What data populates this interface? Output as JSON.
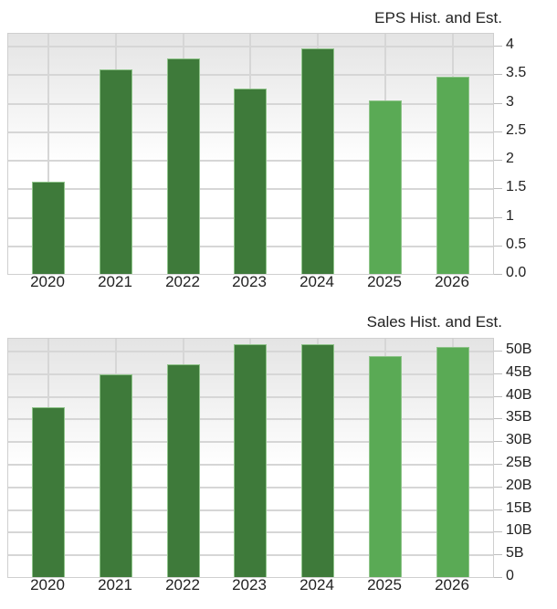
{
  "chart_data": [
    {
      "type": "bar",
      "title": "EPS Hist. and Est.",
      "xlabel": "",
      "ylabel": "",
      "categories": [
        "2020",
        "2021",
        "2022",
        "2023",
        "2024",
        "2025",
        "2026"
      ],
      "values": [
        1.61,
        3.58,
        3.77,
        3.25,
        3.96,
        3.04,
        3.45
      ],
      "bar_kind": [
        "hist",
        "hist",
        "hist",
        "hist",
        "hist",
        "est",
        "est"
      ],
      "ylim": [
        0,
        4.2
      ],
      "yticks": [
        0,
        0.5,
        1,
        1.5,
        2,
        2.5,
        3,
        3.5,
        4
      ],
      "ytick_labels": [
        "0.0",
        "0.5",
        "1",
        "1.5",
        "2",
        "2.5",
        "3",
        "3.5",
        "4"
      ],
      "axis_position": "right",
      "grid": true,
      "colors": {
        "historical": "#3e7a3a",
        "estimate": "#5aaa55"
      }
    },
    {
      "type": "bar",
      "title": "Sales Hist. and Est.",
      "xlabel": "",
      "ylabel": "",
      "categories": [
        "2020",
        "2021",
        "2022",
        "2023",
        "2024",
        "2025",
        "2026"
      ],
      "values": [
        37.6,
        44.7,
        46.9,
        51.4,
        51.5,
        48.8,
        50.9
      ],
      "units": "B",
      "bar_kind": [
        "hist",
        "hist",
        "hist",
        "hist",
        "hist",
        "est",
        "est"
      ],
      "ylim": [
        0,
        52.6
      ],
      "yticks": [
        0,
        5,
        10,
        15,
        20,
        25,
        30,
        35,
        40,
        45,
        50
      ],
      "ytick_labels": [
        "0",
        "5B",
        "10B",
        "15B",
        "20B",
        "25B",
        "30B",
        "35B",
        "40B",
        "45B",
        "50B"
      ],
      "axis_position": "right",
      "grid": true,
      "colors": {
        "historical": "#3e7a3a",
        "estimate": "#5aaa55"
      }
    }
  ]
}
